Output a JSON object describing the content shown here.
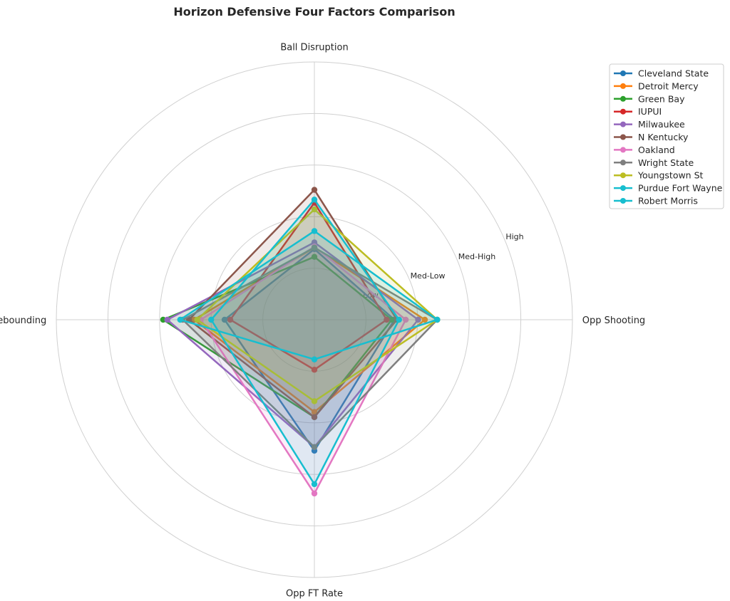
{
  "chart_data": {
    "type": "radar",
    "title": "Horizon Defensive Four Factors Comparison",
    "axes": [
      "Ball Disruption",
      "Def Rebounding",
      "Opp FT Rate",
      "Opp Shooting"
    ],
    "radial_ticks": [
      1,
      2,
      3,
      4
    ],
    "radial_tick_labels": [
      "Low",
      "Med-Low",
      "Med-High",
      "High"
    ],
    "rlim": [
      0,
      5
    ],
    "grid": true,
    "legend_placement": "top-right outside",
    "series": [
      {
        "name": "Cleveland State",
        "color": "#1f77b4",
        "values": [
          1.37,
          1.74,
          2.54,
          1.55
        ]
      },
      {
        "name": "Detroit Mercy",
        "color": "#ff7f0e",
        "values": [
          1.4,
          2.33,
          1.79,
          2.14
        ]
      },
      {
        "name": "Green Bay",
        "color": "#2ca02c",
        "values": [
          1.22,
          2.93,
          1.89,
          1.5
        ]
      },
      {
        "name": "IUPUI",
        "color": "#d62728",
        "values": [
          2.27,
          1.63,
          0.97,
          1.4
        ]
      },
      {
        "name": "Milwaukee",
        "color": "#9467bd",
        "values": [
          1.5,
          2.85,
          2.47,
          2.01
        ]
      },
      {
        "name": "N Kentucky",
        "color": "#8c564b",
        "values": [
          2.52,
          2.43,
          1.89,
          1.6
        ]
      },
      {
        "name": "Oakland",
        "color": "#e377c2",
        "values": [
          1.42,
          2.2,
          3.37,
          1.77
        ]
      },
      {
        "name": "Wright State",
        "color": "#7f7f7f",
        "values": [
          1.4,
          2.55,
          2.47,
          2.38
        ]
      },
      {
        "name": "Youngstown St",
        "color": "#bcbd22",
        "values": [
          2.14,
          2.27,
          1.58,
          2.38
        ]
      },
      {
        "name": "Purdue Fort Wayne",
        "color": "#17becf",
        "values": [
          2.33,
          2.0,
          3.19,
          1.64
        ]
      },
      {
        "name": "Robert Morris",
        "color": "#17becf",
        "values": [
          1.72,
          2.6,
          0.77,
          2.38
        ]
      }
    ]
  }
}
